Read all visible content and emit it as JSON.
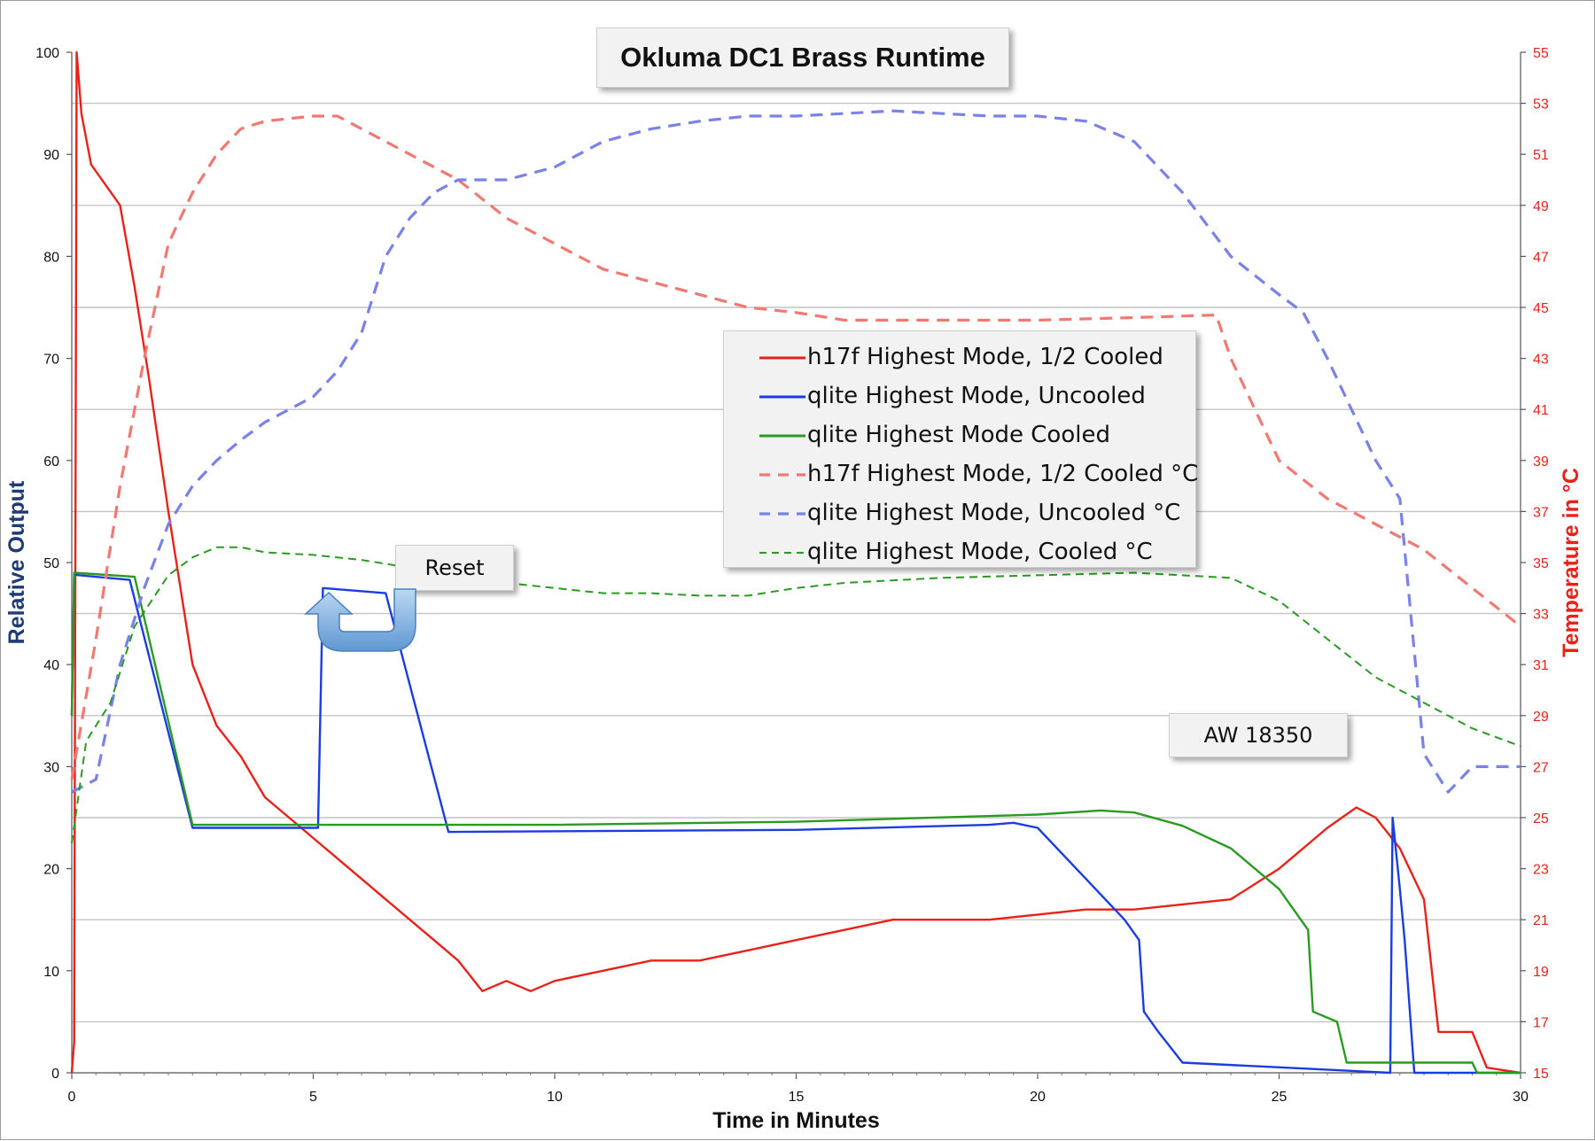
{
  "chart_data": {
    "type": "line",
    "title": "Okluma DC1 Brass Runtime",
    "xlabel": "Time in Minutes",
    "ylabel_left": "Relative Output",
    "ylabel_right": "Temperature in °C",
    "xlim": [
      0,
      30
    ],
    "ylim_left": [
      0,
      100
    ],
    "ylim_right": [
      15,
      55
    ],
    "x_ticks": [
      "0",
      "5",
      "10",
      "15",
      "20",
      "25",
      "30"
    ],
    "y_left_ticks": [
      "0",
      "10",
      "20",
      "30",
      "40",
      "50",
      "60",
      "70",
      "80",
      "90",
      "100"
    ],
    "y_right_ticks": [
      "15",
      "17",
      "19",
      "21",
      "23",
      "25",
      "27",
      "29",
      "31",
      "33",
      "35",
      "37",
      "39",
      "41",
      "43",
      "45",
      "47",
      "49",
      "51",
      "53",
      "55"
    ],
    "grid": true,
    "legend_position": "center-right",
    "annotations": [
      "Reset",
      "AW 18350"
    ],
    "series": [
      {
        "name": "h17f Highest Mode, 1/2 Cooled",
        "axis": "left",
        "style": "solid",
        "color": "#e8221a",
        "points": [
          [
            0,
            0
          ],
          [
            0.05,
            3
          ],
          [
            0.1,
            100
          ],
          [
            0.2,
            94
          ],
          [
            0.4,
            89
          ],
          [
            0.7,
            87
          ],
          [
            1,
            85
          ],
          [
            1.3,
            77
          ],
          [
            1.6,
            68
          ],
          [
            2,
            55
          ],
          [
            2.5,
            40
          ],
          [
            3,
            34
          ],
          [
            3.5,
            31
          ],
          [
            4,
            27
          ],
          [
            4.5,
            25
          ],
          [
            5,
            23
          ],
          [
            5.5,
            21
          ],
          [
            6,
            19
          ],
          [
            6.5,
            17
          ],
          [
            7,
            15
          ],
          [
            7.5,
            13
          ],
          [
            8,
            11
          ],
          [
            8.5,
            8
          ],
          [
            9,
            9
          ],
          [
            9.5,
            8
          ],
          [
            10,
            9
          ],
          [
            11,
            10
          ],
          [
            12,
            11
          ],
          [
            13,
            11
          ],
          [
            14,
            12
          ],
          [
            15,
            13
          ],
          [
            16,
            14
          ],
          [
            17,
            15
          ],
          [
            18,
            15
          ],
          [
            19,
            15
          ],
          [
            20,
            15.5
          ],
          [
            21,
            16
          ],
          [
            22,
            16
          ],
          [
            23,
            16.5
          ],
          [
            24,
            17
          ],
          [
            25,
            20
          ],
          [
            26,
            24
          ],
          [
            26.6,
            26
          ],
          [
            27,
            25
          ],
          [
            27.5,
            22
          ],
          [
            28,
            17
          ],
          [
            28.3,
            4
          ],
          [
            29,
            4
          ],
          [
            29.3,
            0.5
          ],
          [
            30,
            0
          ]
        ]
      },
      {
        "name": "qlite Highest Mode, Uncooled",
        "axis": "left",
        "style": "solid",
        "color": "#1a3de0",
        "points": [
          [
            0,
            35
          ],
          [
            0.05,
            48.8
          ],
          [
            1.2,
            48.3
          ],
          [
            2.5,
            24
          ],
          [
            5.1,
            24
          ],
          [
            5.2,
            47.5
          ],
          [
            6.5,
            47
          ],
          [
            7.8,
            23.6
          ],
          [
            15,
            23.8
          ],
          [
            19,
            24.3
          ],
          [
            19.5,
            24.5
          ],
          [
            20,
            24
          ],
          [
            21,
            19
          ],
          [
            21.8,
            15
          ],
          [
            22.1,
            13
          ],
          [
            22.2,
            6
          ],
          [
            22.5,
            4
          ],
          [
            23,
            1
          ],
          [
            27.3,
            0
          ],
          [
            27.35,
            25
          ],
          [
            27.5,
            18
          ],
          [
            27.6,
            13
          ],
          [
            27.8,
            0
          ],
          [
            30,
            0
          ]
        ]
      },
      {
        "name": "qlite Highest Mode Cooled",
        "axis": "left",
        "style": "solid",
        "color": "#2a9a22",
        "points": [
          [
            0,
            35
          ],
          [
            0.05,
            49
          ],
          [
            1.3,
            48.6
          ],
          [
            2.5,
            24.3
          ],
          [
            10,
            24.3
          ],
          [
            15,
            24.6
          ],
          [
            20,
            25.3
          ],
          [
            21.3,
            25.7
          ],
          [
            22,
            25.5
          ],
          [
            23,
            24.2
          ],
          [
            24,
            22
          ],
          [
            25,
            18
          ],
          [
            25.6,
            14
          ],
          [
            25.7,
            6
          ],
          [
            26.2,
            5
          ],
          [
            26.4,
            1
          ],
          [
            29,
            1
          ],
          [
            29.1,
            0
          ],
          [
            30,
            0
          ]
        ]
      },
      {
        "name": "h17f Highest Mode, 1/2 Cooled °C",
        "axis": "right",
        "style": "dashed",
        "color": "#f07a72",
        "points": [
          [
            0,
            26.5
          ],
          [
            0.5,
            32
          ],
          [
            1,
            38
          ],
          [
            1.5,
            43
          ],
          [
            2,
            47.5
          ],
          [
            2.5,
            49.5
          ],
          [
            3,
            51
          ],
          [
            3.5,
            52
          ],
          [
            4,
            52.3
          ],
          [
            5,
            52.5
          ],
          [
            5.5,
            52.5
          ],
          [
            6,
            52
          ],
          [
            7,
            51
          ],
          [
            8,
            50
          ],
          [
            9,
            48.5
          ],
          [
            10,
            47.5
          ],
          [
            11,
            46.5
          ],
          [
            12,
            46
          ],
          [
            13,
            45.5
          ],
          [
            14,
            45
          ],
          [
            15,
            44.8
          ],
          [
            16,
            44.5
          ],
          [
            17,
            44.5
          ],
          [
            18,
            44.5
          ],
          [
            20,
            44.5
          ],
          [
            22,
            44.6
          ],
          [
            23.7,
            44.7
          ],
          [
            24,
            43
          ],
          [
            25,
            39
          ],
          [
            26,
            37.5
          ],
          [
            27,
            36.5
          ],
          [
            28,
            35.5
          ],
          [
            29,
            34
          ],
          [
            30,
            32.5
          ]
        ]
      },
      {
        "name": "qlite Highest Mode, Uncooled °C",
        "axis": "right",
        "style": "dashed",
        "color": "#7a82e8",
        "points": [
          [
            0,
            26
          ],
          [
            0.5,
            26.5
          ],
          [
            1,
            31
          ],
          [
            1.5,
            34
          ],
          [
            2,
            36.5
          ],
          [
            2.5,
            38
          ],
          [
            3,
            39
          ],
          [
            3.5,
            39.8
          ],
          [
            4,
            40.5
          ],
          [
            5,
            41.5
          ],
          [
            5.5,
            42.5
          ],
          [
            6,
            44
          ],
          [
            6.5,
            47
          ],
          [
            7,
            48.5
          ],
          [
            7.5,
            49.5
          ],
          [
            8,
            50
          ],
          [
            9,
            50
          ],
          [
            10,
            50.5
          ],
          [
            11,
            51.5
          ],
          [
            12,
            52
          ],
          [
            13,
            52.3
          ],
          [
            14,
            52.5
          ],
          [
            15,
            52.5
          ],
          [
            17,
            52.7
          ],
          [
            19,
            52.5
          ],
          [
            20,
            52.5
          ],
          [
            21,
            52.3
          ],
          [
            22,
            51.5
          ],
          [
            23,
            49.5
          ],
          [
            24,
            47
          ],
          [
            25,
            45.5
          ],
          [
            25.5,
            44.8
          ],
          [
            26,
            43
          ],
          [
            27,
            39
          ],
          [
            27.5,
            37.5
          ],
          [
            28,
            27.5
          ],
          [
            28.5,
            26
          ],
          [
            29,
            27
          ],
          [
            30,
            27
          ]
        ]
      },
      {
        "name": "qlite Highest Mode, Cooled °C",
        "axis": "right",
        "style": "dashed-small",
        "color": "#2a9a22",
        "points": [
          [
            0,
            24
          ],
          [
            0.3,
            28
          ],
          [
            0.8,
            29.5
          ],
          [
            1.3,
            32.5
          ],
          [
            2,
            34.5
          ],
          [
            2.5,
            35.2
          ],
          [
            3,
            35.6
          ],
          [
            3.5,
            35.6
          ],
          [
            4,
            35.4
          ],
          [
            5,
            35.3
          ],
          [
            6,
            35.1
          ],
          [
            7,
            34.8
          ],
          [
            8,
            34.5
          ],
          [
            9,
            34.2
          ],
          [
            10,
            34
          ],
          [
            11,
            33.8
          ],
          [
            12,
            33.8
          ],
          [
            13,
            33.7
          ],
          [
            14,
            33.7
          ],
          [
            15,
            34
          ],
          [
            16,
            34.2
          ],
          [
            18,
            34.4
          ],
          [
            20,
            34.5
          ],
          [
            22,
            34.6
          ],
          [
            24,
            34.4
          ],
          [
            25,
            33.5
          ],
          [
            26,
            32
          ],
          [
            27,
            30.5
          ],
          [
            28,
            29.5
          ],
          [
            29,
            28.5
          ],
          [
            30,
            27.8
          ]
        ]
      }
    ]
  }
}
